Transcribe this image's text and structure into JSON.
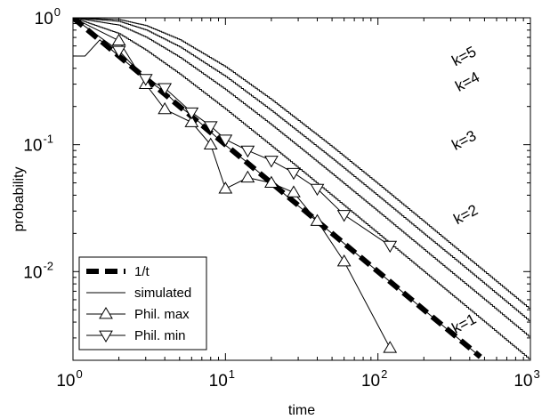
{
  "chart_data": {
    "type": "line",
    "xlabel": "time",
    "ylabel": "probability",
    "x_scale": "log",
    "y_scale": "log",
    "xlim": [
      1,
      1000
    ],
    "ylim": [
      0.002,
      1
    ],
    "x_ticks": [
      {
        "value": 1,
        "base": "10",
        "exp": "0"
      },
      {
        "value": 10,
        "base": "10",
        "exp": "1"
      },
      {
        "value": 100,
        "base": "10",
        "exp": "2"
      },
      {
        "value": 1000,
        "base": "10",
        "exp": "3"
      }
    ],
    "y_ticks": [
      {
        "value": 0.01,
        "base": "10",
        "exp": "-2"
      },
      {
        "value": 0.1,
        "base": "10",
        "exp": "-1"
      },
      {
        "value": 1,
        "base": "10",
        "exp": "0"
      }
    ],
    "legend_position": "bottom-left",
    "legend": [
      {
        "label": "1/t",
        "style": "thick-dashed"
      },
      {
        "label": "simulated",
        "style": "thin-line"
      },
      {
        "label": "Phil. max",
        "style": "line-triangle-up"
      },
      {
        "label": "Phil. min",
        "style": "line-triangle-down"
      }
    ],
    "series": [
      {
        "name": "1/t",
        "style": "thick-dashed",
        "x": [
          1,
          470
        ],
        "y": [
          1,
          0.002128
        ]
      },
      {
        "name": "simulated",
        "style": "thin-line",
        "label": "k=1",
        "x": [
          1,
          1,
          1.2,
          1.5,
          2,
          2.5,
          3,
          4,
          5,
          6,
          8,
          10,
          14,
          20,
          30,
          50,
          80,
          130,
          200,
          300,
          470
        ],
        "y": [
          1,
          0.5,
          0.5,
          0.67,
          0.5,
          0.4,
          0.33,
          0.26,
          0.2,
          0.17,
          0.126,
          0.099,
          0.072,
          0.05,
          0.033,
          0.02,
          0.0125,
          0.0077,
          0.005,
          0.00333,
          0.002128
        ]
      },
      {
        "name": "simulated",
        "style": "thin-line",
        "label": "k=2",
        "x": [
          1,
          2,
          3,
          5,
          10,
          20,
          30,
          50,
          100,
          200,
          300,
          500,
          1000
        ],
        "y": [
          1,
          0.75,
          0.556,
          0.36,
          0.19,
          0.0975,
          0.0656,
          0.0396,
          0.0199,
          0.00998,
          0.00666,
          0.004,
          0.002
        ]
      },
      {
        "name": "simulated",
        "style": "thin-line",
        "label": "k=3",
        "x": [
          1,
          2,
          3,
          5,
          10,
          20,
          30,
          50,
          100,
          200,
          300,
          500,
          1000
        ],
        "y": [
          1,
          0.875,
          0.704,
          0.488,
          0.271,
          0.143,
          0.0968,
          0.0588,
          0.0297,
          0.0149,
          0.00996,
          0.006,
          0.003
        ]
      },
      {
        "name": "simulated",
        "style": "thin-line",
        "label": "k=4",
        "x": [
          1,
          2,
          3,
          5,
          10,
          20,
          30,
          50,
          100,
          200,
          300,
          500,
          1000
        ],
        "y": [
          1,
          0.9375,
          0.802,
          0.59,
          0.344,
          0.185,
          0.126,
          0.0776,
          0.0394,
          0.0198,
          0.0133,
          0.008,
          0.004
        ]
      },
      {
        "name": "simulated",
        "style": "thin-line",
        "label": "k=5",
        "x": [
          1,
          2,
          3,
          5,
          10,
          20,
          30,
          50,
          100,
          200,
          300,
          500,
          1000
        ],
        "y": [
          1,
          0.969,
          0.868,
          0.672,
          0.41,
          0.226,
          0.155,
          0.0961,
          0.049,
          0.0247,
          0.0165,
          0.00995,
          0.005
        ]
      },
      {
        "name": "Phil. max",
        "style": "line-triangle-up",
        "x": [
          1,
          2,
          3,
          4,
          6,
          8,
          10,
          14,
          20,
          28,
          40,
          60,
          120
        ],
        "y": [
          1,
          0.66,
          0.3,
          0.19,
          0.15,
          0.1,
          0.045,
          0.055,
          0.05,
          0.042,
          0.025,
          0.012,
          0.0025
        ]
      },
      {
        "name": "Phil. min",
        "style": "line-triangle-down",
        "x": [
          1,
          2,
          3,
          4,
          6,
          8,
          10,
          14,
          20,
          28,
          40,
          60,
          120
        ],
        "y": [
          1,
          0.55,
          0.33,
          0.28,
          0.18,
          0.14,
          0.11,
          0.09,
          0.075,
          0.06,
          0.045,
          0.028,
          0.016
        ]
      }
    ],
    "annotations": [
      {
        "text": "k=5",
        "x": 380,
        "y": 0.46
      },
      {
        "text": "k=4",
        "x": 400,
        "y": 0.29
      },
      {
        "text": "k=3",
        "x": 380,
        "y": 0.1
      },
      {
        "text": "k=2",
        "x": 390,
        "y": 0.026
      },
      {
        "text": "k=1",
        "x": 380,
        "y": 0.0036
      }
    ]
  }
}
